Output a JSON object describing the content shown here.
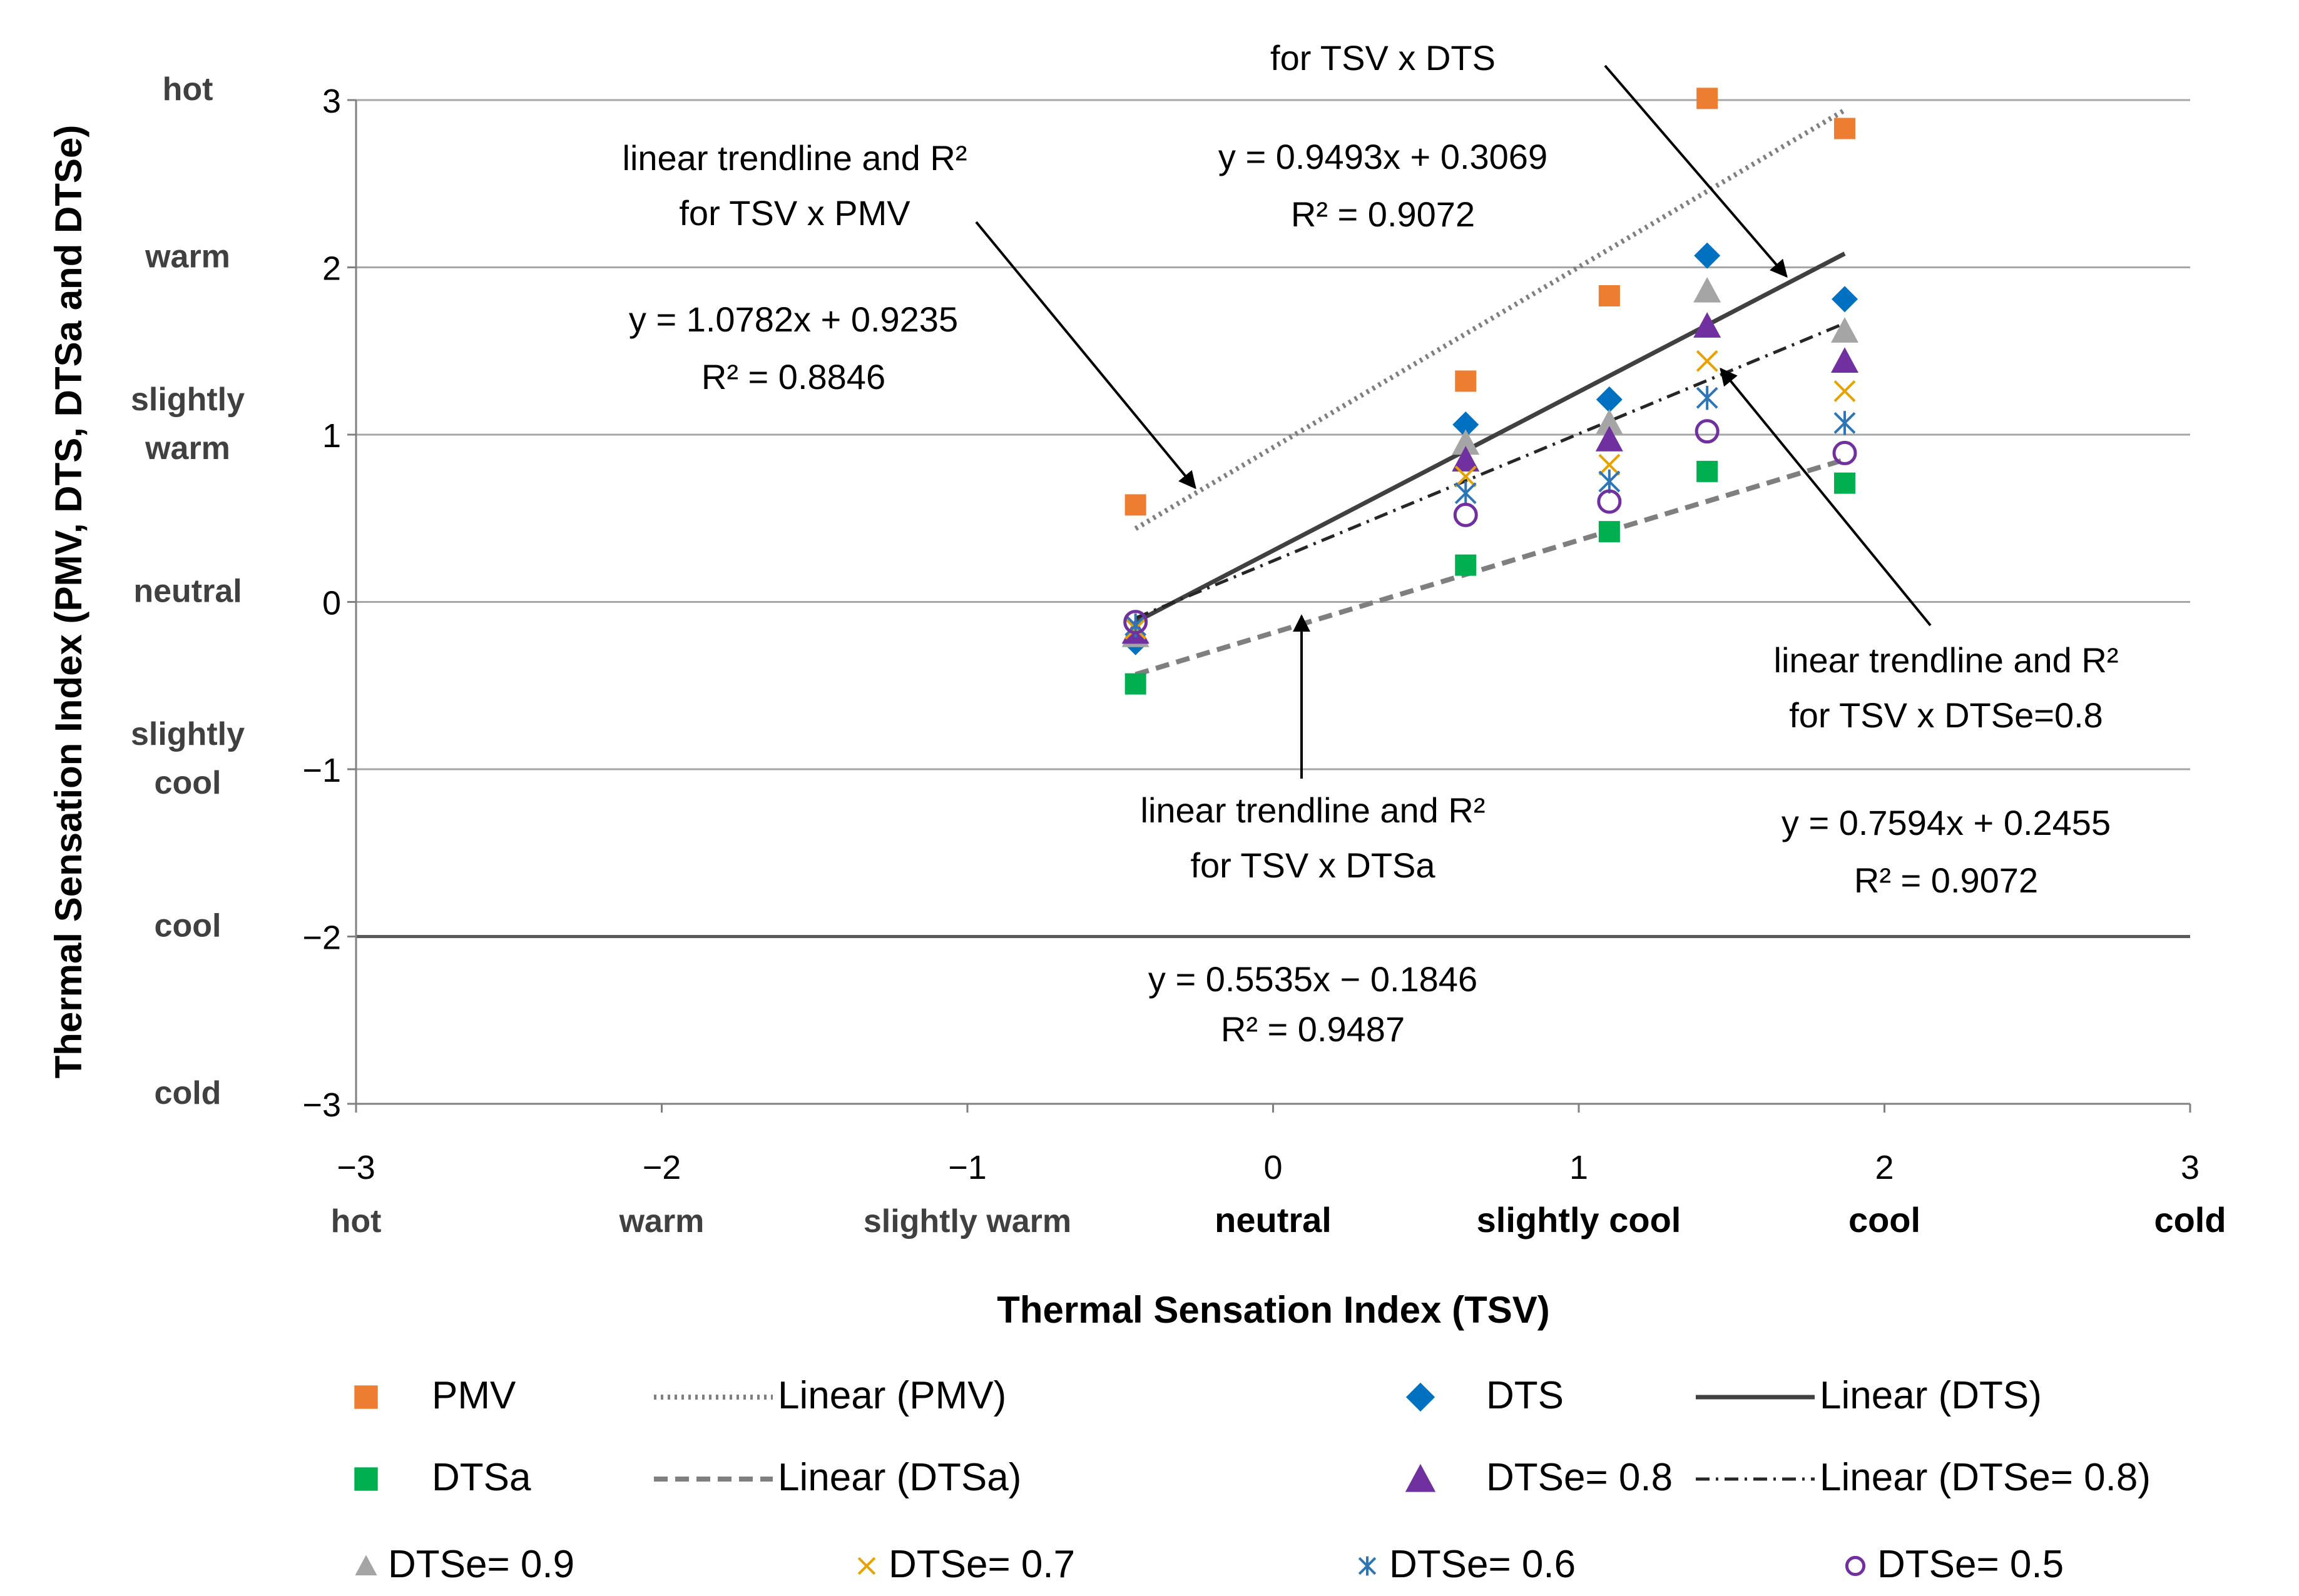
{
  "chart_data": {
    "type": "scatter",
    "xlabel": "Thermal Sensation Index (TSV)",
    "ylabel": "Thermal Sensation Index (PMV, DTS, DTSa and DTSe)",
    "xlim": [
      -3,
      3
    ],
    "ylim": [
      -3,
      3
    ],
    "x_ticks": [
      {
        "v": -3,
        "label": "−3",
        "cat": "hot",
        "bold": false
      },
      {
        "v": -2,
        "label": "−2",
        "cat": "warm",
        "bold": false
      },
      {
        "v": -1,
        "label": "−1",
        "cat": "slightly warm",
        "bold": false
      },
      {
        "v": 0,
        "label": "0",
        "cat": "neutral",
        "bold": true
      },
      {
        "v": 1,
        "label": "1",
        "cat": "slightly cool",
        "bold": true
      },
      {
        "v": 2,
        "label": "2",
        "cat": "cool",
        "bold": true
      },
      {
        "v": 3,
        "label": "3",
        "cat": "cold",
        "bold": true
      }
    ],
    "y_ticks": [
      {
        "v": 3,
        "label": "3"
      },
      {
        "v": 2,
        "label": "2"
      },
      {
        "v": 1,
        "label": "1"
      },
      {
        "v": 0,
        "label": "0"
      },
      {
        "v": -1,
        "label": "−1"
      },
      {
        "v": -2,
        "label": "−2"
      },
      {
        "v": -3,
        "label": "−3"
      }
    ],
    "y_categories": [
      {
        "v": 3,
        "lines": [
          "hot"
        ]
      },
      {
        "v": 2,
        "lines": [
          "warm"
        ]
      },
      {
        "v": 1,
        "lines": [
          "slightly",
          "warm"
        ]
      },
      {
        "v": 0,
        "lines": [
          "neutral"
        ]
      },
      {
        "v": -1,
        "lines": [
          "slightly",
          "cool"
        ]
      },
      {
        "v": -2,
        "lines": [
          "cool"
        ]
      },
      {
        "v": -3,
        "lines": [
          "cold"
        ]
      }
    ],
    "series": [
      {
        "name": "PMV",
        "marker": "square",
        "color": "#ED7D31",
        "x": [
          -0.45,
          0.63,
          1.1,
          1.42,
          1.87
        ],
        "y": [
          0.58,
          1.32,
          1.83,
          3.01,
          2.83
        ]
      },
      {
        "name": "DTSa",
        "marker": "square",
        "color": "#00B050",
        "x": [
          -0.45,
          0.63,
          1.1,
          1.42,
          1.87
        ],
        "y": [
          -0.49,
          0.22,
          0.42,
          0.78,
          0.71
        ]
      },
      {
        "name": "DTS",
        "marker": "diamond",
        "color": "#0070C0",
        "x": [
          -0.45,
          0.63,
          1.1,
          1.42,
          1.87
        ],
        "y": [
          -0.24,
          1.06,
          1.21,
          2.07,
          1.81
        ]
      },
      {
        "name": "DTSe= 0.9",
        "marker": "triangle",
        "color": "#A5A5A5",
        "x": [
          -0.45,
          0.63,
          1.1,
          1.42,
          1.87
        ],
        "y": [
          -0.2,
          0.95,
          1.07,
          1.86,
          1.62
        ]
      },
      {
        "name": "DTSe= 0.8",
        "marker": "triangle",
        "color": "#7030A0",
        "x": [
          -0.45,
          0.63,
          1.1,
          1.42,
          1.87
        ],
        "y": [
          -0.18,
          0.85,
          0.97,
          1.65,
          1.44
        ]
      },
      {
        "name": "DTSe= 0.7",
        "marker": "x",
        "color": "#E8A200",
        "x": [
          -0.45,
          0.63,
          1.1,
          1.42,
          1.87
        ],
        "y": [
          -0.16,
          0.75,
          0.82,
          1.44,
          1.26
        ]
      },
      {
        "name": "DTSe= 0.6",
        "marker": "star",
        "color": "#2E75B6",
        "x": [
          -0.45,
          0.63,
          1.1,
          1.42,
          1.87
        ],
        "y": [
          -0.14,
          0.65,
          0.72,
          1.22,
          1.07
        ]
      },
      {
        "name": "DTSe= 0.5",
        "marker": "circle",
        "color": "#7030A0",
        "x": [
          -0.45,
          0.63,
          1.1,
          1.42,
          1.87
        ],
        "y": [
          -0.12,
          0.52,
          0.6,
          1.02,
          0.89
        ]
      }
    ],
    "trendlines": [
      {
        "name": "Linear (PMV)",
        "slope": 1.0782,
        "intercept": 0.9235,
        "x_range": [
          -0.45,
          1.87
        ],
        "color": "#7F7F7F",
        "style": "dotted"
      },
      {
        "name": "Linear (DTS)",
        "slope": 0.9493,
        "intercept": 0.3069,
        "x_range": [
          -0.45,
          1.87
        ],
        "color": "#404040",
        "style": "solid"
      },
      {
        "name": "Linear (DTSe= 0.8)",
        "slope": 0.7594,
        "intercept": 0.2455,
        "x_range": [
          -0.45,
          1.87
        ],
        "color": "#262626",
        "style": "dashdot"
      },
      {
        "name": "Linear (DTSa)",
        "slope": 0.5535,
        "intercept": -0.1846,
        "x_range": [
          -0.45,
          1.87
        ],
        "color": "#7F7F7F",
        "style": "dashed"
      }
    ],
    "annotations": [
      {
        "id": "pmv-label",
        "lines": [
          "linear trendline and R²",
          "for TSV x PMV"
        ]
      },
      {
        "id": "pmv-eq",
        "lines": [
          "y = 1.0782x + 0.9235",
          "R² = 0.8846"
        ]
      },
      {
        "id": "dts-label",
        "lines": [
          "for TSV x DTS"
        ]
      },
      {
        "id": "dts-eq",
        "lines": [
          "y = 0.9493x + 0.3069",
          "R² = 0.9072"
        ]
      },
      {
        "id": "dtse-label",
        "lines": [
          "linear trendline and R²",
          "for TSV x DTSe=0.8"
        ]
      },
      {
        "id": "dtse-eq",
        "lines": [
          "y = 0.7594x + 0.2455",
          "R² = 0.9072"
        ]
      },
      {
        "id": "dtsa-label",
        "lines": [
          "linear trendline and R²",
          "for TSV x DTSa"
        ]
      },
      {
        "id": "dtsa-eq",
        "lines": [
          "y = 0.5535x − 0.1846",
          "R² = 0.9487"
        ]
      }
    ],
    "legend": {
      "position": "bottom",
      "items": [
        {
          "label": "PMV",
          "kind": "marker",
          "marker": "square",
          "color": "#ED7D31"
        },
        {
          "label": "Linear (PMV)",
          "kind": "line",
          "style": "dotted",
          "color": "#7F7F7F"
        },
        {
          "label": "DTS",
          "kind": "marker",
          "marker": "diamond",
          "color": "#0070C0"
        },
        {
          "label": "Linear (DTS)",
          "kind": "line",
          "style": "solid",
          "color": "#404040"
        },
        {
          "label": "DTSa",
          "kind": "marker",
          "marker": "square",
          "color": "#00B050"
        },
        {
          "label": "Linear (DTSa)",
          "kind": "line",
          "style": "dashed",
          "color": "#7F7F7F"
        },
        {
          "label": "DTSe= 0.8",
          "kind": "marker",
          "marker": "triangle",
          "color": "#7030A0"
        },
        {
          "label": "Linear (DTSe= 0.8)",
          "kind": "line",
          "style": "dashdot",
          "color": "#262626"
        },
        {
          "label": "DTSe= 0.9",
          "kind": "marker",
          "marker": "triangle",
          "color": "#A5A5A5"
        },
        {
          "label": "DTSe= 0.7",
          "kind": "marker",
          "marker": "x",
          "color": "#E8A200"
        },
        {
          "label": "DTSe= 0.6",
          "kind": "marker",
          "marker": "star",
          "color": "#2E75B6"
        },
        {
          "label": "DTSe= 0.5",
          "kind": "marker",
          "marker": "circle",
          "color": "#7030A0"
        }
      ]
    }
  }
}
